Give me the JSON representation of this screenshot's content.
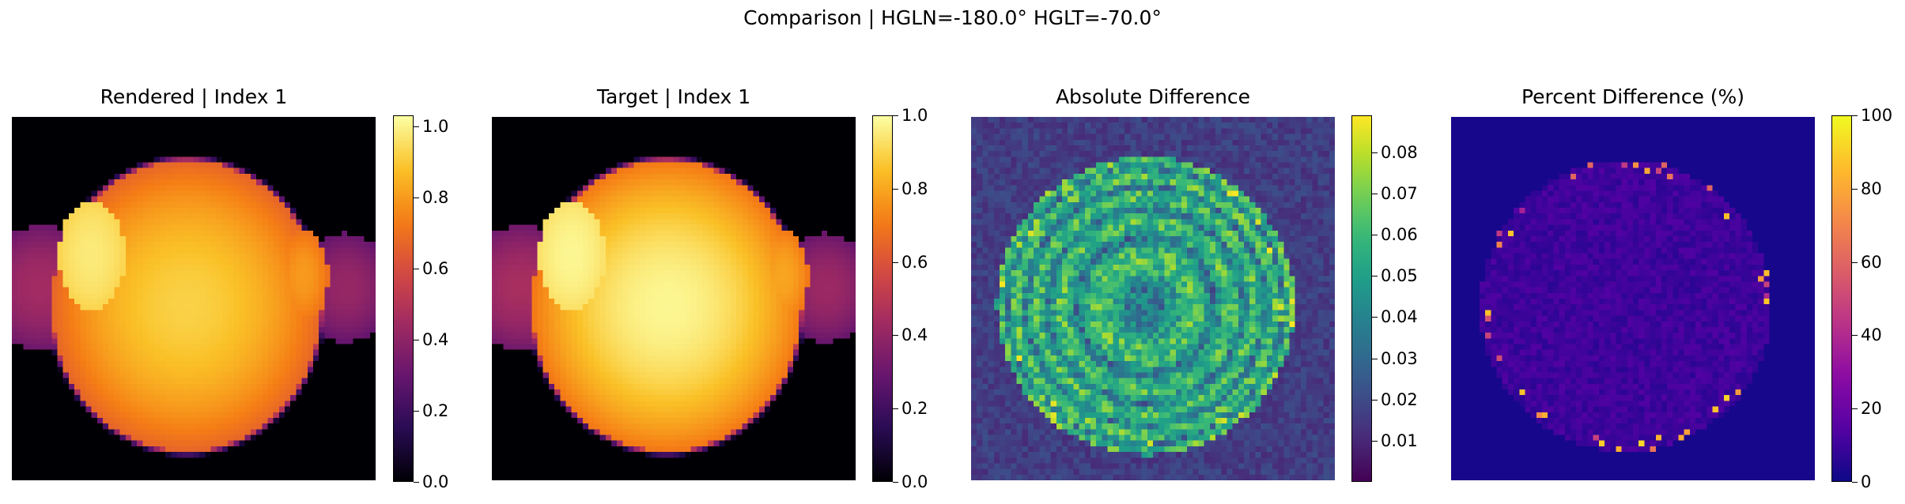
{
  "figure": {
    "suptitle": "Comparison | HGLN=-180.0° HGLT=-70.0°"
  },
  "chart_data": [
    {
      "type": "heatmap",
      "title": "Rendered | Index 1",
      "colormap": "inferno",
      "colorbar_range": [
        0.0,
        1.03
      ],
      "colorbar_ticks": [
        "0.0",
        "0.2",
        "0.4",
        "0.6",
        "0.8",
        "1.0"
      ],
      "colorbar_tick_values": [
        0.0,
        0.2,
        0.4,
        0.6,
        0.8,
        1.0
      ]
    },
    {
      "type": "heatmap",
      "title": "Target | Index 1",
      "colormap": "inferno",
      "colorbar_range": [
        0.0,
        1.0
      ],
      "colorbar_ticks": [
        "0.0",
        "0.2",
        "0.4",
        "0.6",
        "0.8",
        "1.0"
      ],
      "colorbar_tick_values": [
        0.0,
        0.2,
        0.4,
        0.6,
        0.8,
        1.0
      ]
    },
    {
      "type": "heatmap",
      "title": "Absolute Difference",
      "colormap": "viridis",
      "colorbar_range": [
        0.0,
        0.089
      ],
      "colorbar_ticks": [
        "0.01",
        "0.02",
        "0.03",
        "0.04",
        "0.05",
        "0.06",
        "0.07",
        "0.08"
      ],
      "colorbar_tick_values": [
        0.01,
        0.02,
        0.03,
        0.04,
        0.05,
        0.06,
        0.07,
        0.08
      ]
    },
    {
      "type": "heatmap",
      "title": "Percent Difference (%)",
      "colormap": "plasma",
      "colorbar_range": [
        0,
        100
      ],
      "colorbar_ticks": [
        "0",
        "20",
        "40",
        "60",
        "80",
        "100"
      ],
      "colorbar_tick_values": [
        0,
        20,
        40,
        60,
        80,
        100
      ]
    }
  ]
}
